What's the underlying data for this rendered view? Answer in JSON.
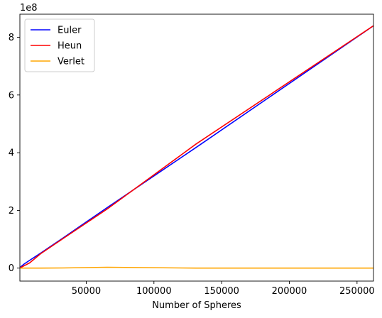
{
  "chart_data": {
    "type": "line",
    "title": "",
    "xlabel": "Number of Spheres",
    "ylabel": "",
    "xlim": [
      1000,
      262144
    ],
    "ylim": [
      -45000000,
      880000000
    ],
    "y_offset_text": "1e8",
    "x_ticks": [
      50000,
      100000,
      150000,
      200000,
      250000
    ],
    "x_tick_labels": [
      "50000",
      "100000",
      "150000",
      "200000",
      "250000"
    ],
    "y_ticks": [
      0,
      200000000,
      400000000,
      600000000,
      800000000
    ],
    "y_tick_labels": [
      "0",
      "2",
      "4",
      "6",
      "8"
    ],
    "grid": false,
    "legend_position": "top-left",
    "series": [
      {
        "name": "Euler",
        "color": "#0000ff",
        "x": [
          1024,
          2048,
          4096,
          8192,
          16384,
          32768,
          65536,
          131072,
          262144
        ],
        "y": [
          2000000,
          6000000,
          14000000,
          27000000,
          52000000,
          104000000,
          210000000,
          418000000,
          840000000
        ]
      },
      {
        "name": "Heun",
        "color": "#ff0000",
        "x": [
          1024,
          2048,
          4096,
          8192,
          16384,
          32768,
          65536,
          131072,
          262144
        ],
        "y": [
          2000000,
          3000000,
          8000000,
          18000000,
          50000000,
          102000000,
          205000000,
          430000000,
          840000000
        ]
      },
      {
        "name": "Verlet",
        "color": "#ffa500",
        "x": [
          1024,
          2048,
          4096,
          8192,
          16384,
          32768,
          65536,
          131072,
          262144
        ],
        "y": [
          0,
          0,
          0,
          0,
          100000,
          500000,
          3000000,
          0,
          0
        ]
      }
    ]
  }
}
